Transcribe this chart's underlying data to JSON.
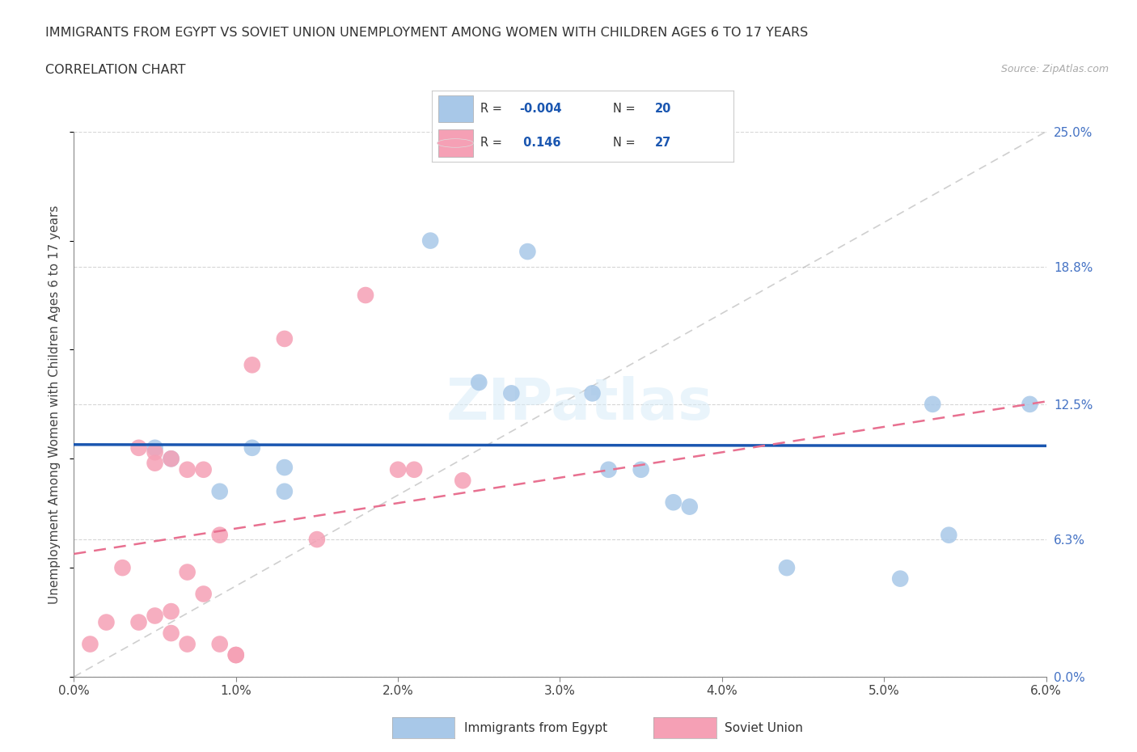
{
  "title_line1": "IMMIGRANTS FROM EGYPT VS SOVIET UNION UNEMPLOYMENT AMONG WOMEN WITH CHILDREN AGES 6 TO 17 YEARS",
  "title_line2": "CORRELATION CHART",
  "source": "Source: ZipAtlas.com",
  "ylabel": "Unemployment Among Women with Children Ages 6 to 17 years",
  "xlim": [
    0.0,
    0.06
  ],
  "ylim": [
    0.0,
    0.25
  ],
  "xticks": [
    0.0,
    0.01,
    0.02,
    0.03,
    0.04,
    0.05,
    0.06
  ],
  "xticklabels": [
    "0.0%",
    "1.0%",
    "2.0%",
    "3.0%",
    "4.0%",
    "5.0%",
    "6.0%"
  ],
  "yticks_right": [
    0.0,
    0.063,
    0.125,
    0.188,
    0.25
  ],
  "yticklabels_right": [
    "0.0%",
    "6.3%",
    "12.5%",
    "18.8%",
    "25.0%"
  ],
  "egypt_color": "#a8c8e8",
  "soviet_color": "#f5a0b5",
  "egypt_line_color": "#1a56b0",
  "soviet_line_color": "#e87090",
  "diag_color": "#bbbbbb",
  "background_color": "#ffffff",
  "watermark": "ZIPatlas",
  "egypt_r": -0.004,
  "egypt_n": 20,
  "soviet_r": 0.146,
  "soviet_n": 27,
  "egypt_points_x": [
    0.005,
    0.006,
    0.009,
    0.011,
    0.013,
    0.013,
    0.022,
    0.025,
    0.027,
    0.028,
    0.032,
    0.033,
    0.035,
    0.037,
    0.038,
    0.044,
    0.051,
    0.053,
    0.054,
    0.059
  ],
  "egypt_points_y": [
    0.105,
    0.1,
    0.085,
    0.105,
    0.096,
    0.085,
    0.2,
    0.135,
    0.13,
    0.195,
    0.13,
    0.095,
    0.095,
    0.08,
    0.078,
    0.05,
    0.045,
    0.125,
    0.065,
    0.125
  ],
  "soviet_points_x": [
    0.001,
    0.002,
    0.003,
    0.004,
    0.004,
    0.005,
    0.005,
    0.005,
    0.006,
    0.006,
    0.006,
    0.007,
    0.007,
    0.007,
    0.008,
    0.008,
    0.009,
    0.009,
    0.01,
    0.01,
    0.011,
    0.013,
    0.015,
    0.018,
    0.02,
    0.021,
    0.024
  ],
  "soviet_points_y": [
    0.015,
    0.025,
    0.05,
    0.105,
    0.025,
    0.028,
    0.103,
    0.098,
    0.1,
    0.03,
    0.02,
    0.095,
    0.048,
    0.015,
    0.095,
    0.038,
    0.065,
    0.015,
    0.01,
    0.01,
    0.143,
    0.155,
    0.063,
    0.175,
    0.095,
    0.095,
    0.09
  ]
}
